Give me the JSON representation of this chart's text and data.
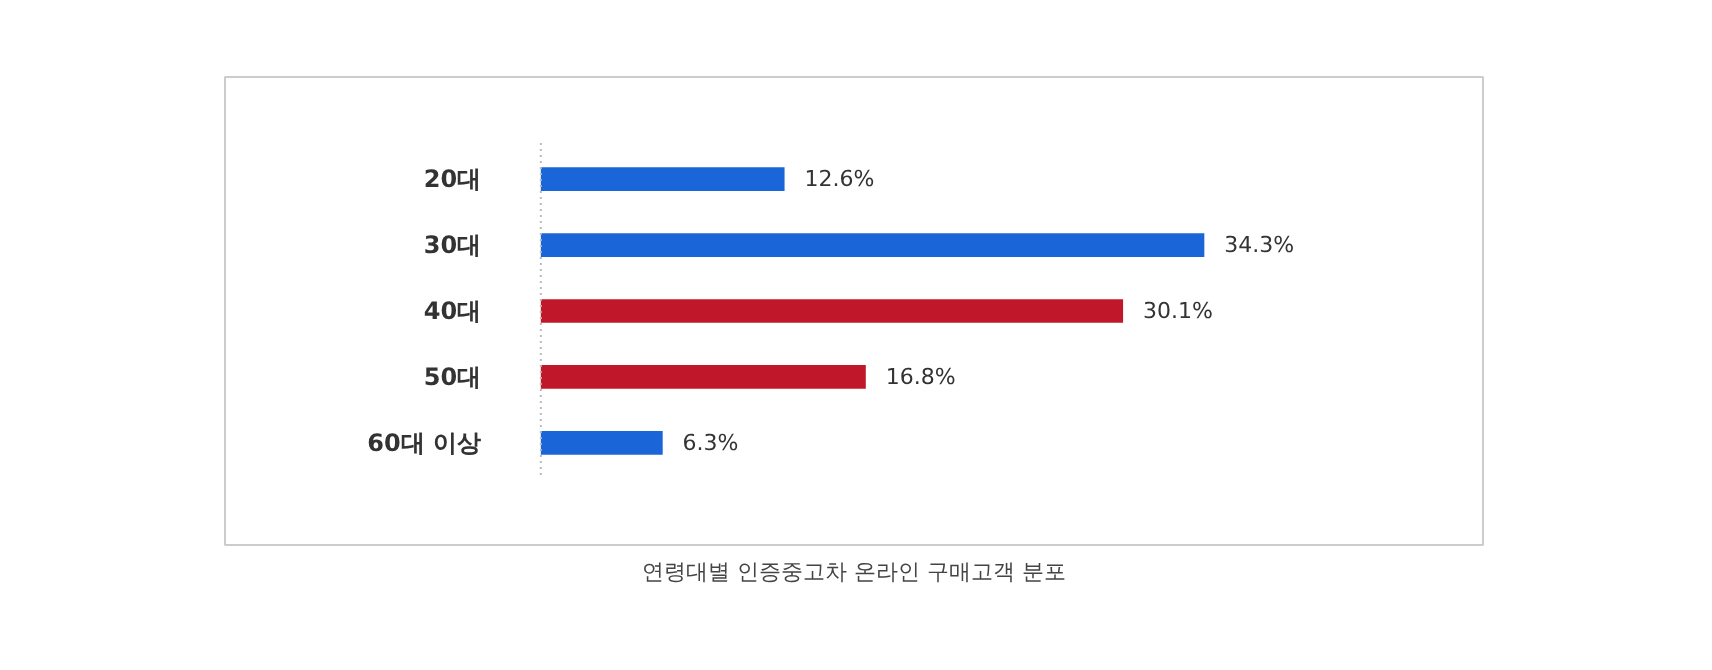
{
  "chart_data": {
    "type": "bar",
    "orientation": "horizontal",
    "title": "연령대별 인증중고차 온라인 구매고객 분포",
    "categories": [
      "20대",
      "30대",
      "40대",
      "50대",
      "60대 이상"
    ],
    "values": [
      12.6,
      34.3,
      30.1,
      16.8,
      6.3
    ],
    "value_labels": [
      "12.6%",
      "34.3%",
      "30.1%",
      "16.8%",
      "6.3%"
    ],
    "colors": [
      "#1a66d9",
      "#1a66d9",
      "#c0182a",
      "#c0182a",
      "#1a66d9"
    ]
  }
}
